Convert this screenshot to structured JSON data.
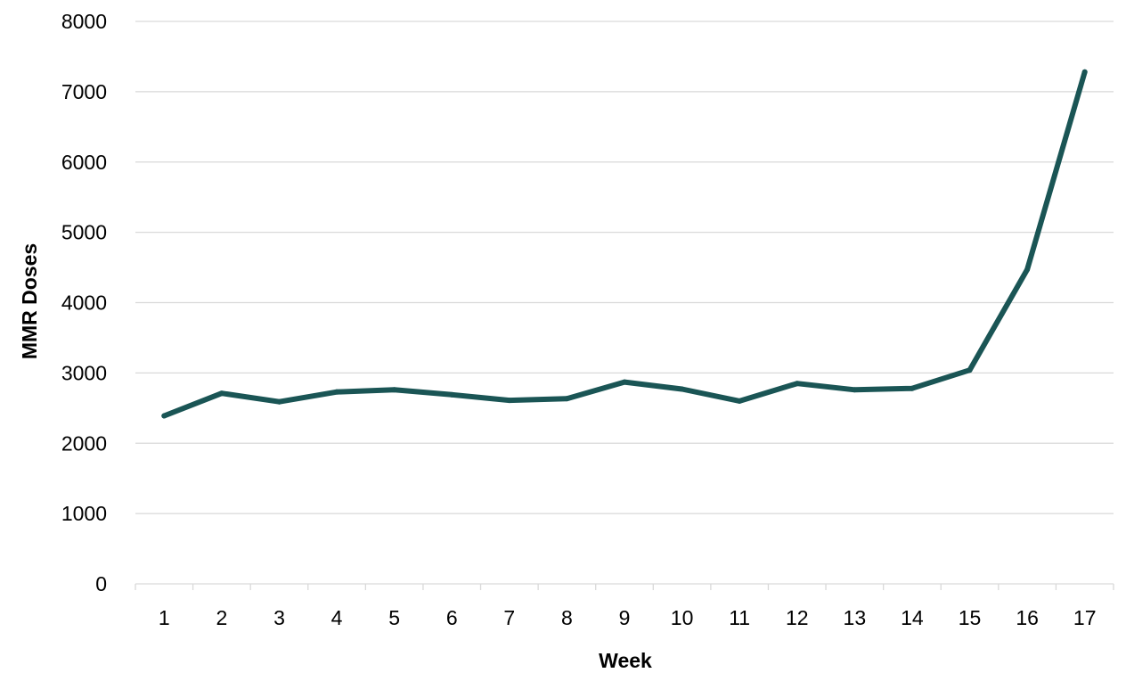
{
  "chart_data": {
    "type": "line",
    "title": "",
    "xlabel": "Week",
    "ylabel": "MMR Doses",
    "categories": [
      "1",
      "2",
      "3",
      "4",
      "5",
      "6",
      "7",
      "8",
      "9",
      "10",
      "11",
      "12",
      "13",
      "14",
      "15",
      "16",
      "17"
    ],
    "series": [
      {
        "values": [
          2390,
          2710,
          2590,
          2730,
          2760,
          2690,
          2610,
          2635,
          2870,
          2770,
          2600,
          2850,
          2760,
          2780,
          3040,
          4470,
          7280
        ]
      }
    ],
    "ylim": [
      0,
      8000
    ],
    "yticks": [
      0,
      1000,
      2000,
      3000,
      4000,
      5000,
      6000,
      7000,
      8000
    ],
    "grid": true,
    "legend": "none",
    "line_color": "#1a5555"
  }
}
